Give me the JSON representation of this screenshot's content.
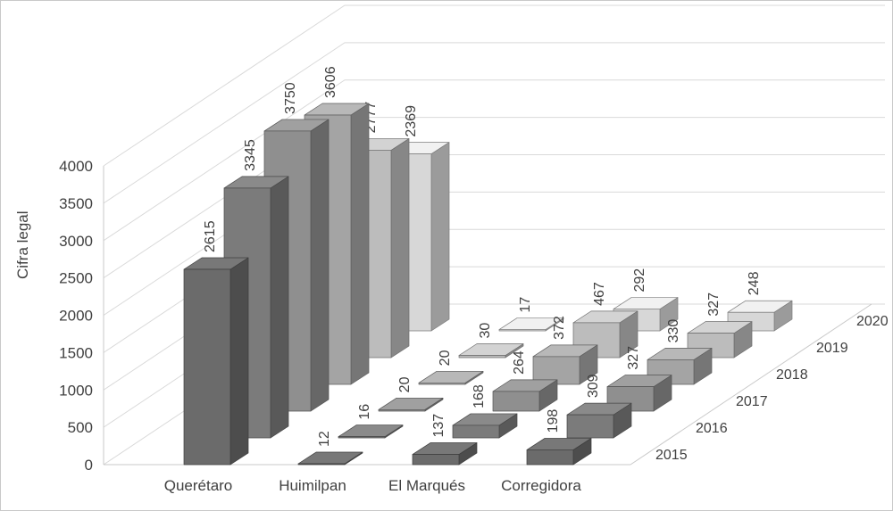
{
  "chart_data": {
    "type": "bar",
    "projection": "3d",
    "title": "",
    "ylabel": "Cifra legal",
    "xlabel": "",
    "categories": [
      "Querétaro",
      "Huimilpan",
      "El Marqués",
      "Corregidora"
    ],
    "series": [
      {
        "name": "2015",
        "color": "#6b6b6b",
        "values": [
          2615,
          12,
          137,
          198
        ]
      },
      {
        "name": "2016",
        "color": "#7b7b7b",
        "values": [
          3345,
          16,
          168,
          309
        ]
      },
      {
        "name": "2017",
        "color": "#8f8f8f",
        "values": [
          3750,
          20,
          264,
          327
        ]
      },
      {
        "name": "2018",
        "color": "#a4a4a4",
        "values": [
          3606,
          20,
          372,
          330
        ]
      },
      {
        "name": "2019",
        "color": "#bcbcbc",
        "values": [
          2777,
          30,
          467,
          327
        ]
      },
      {
        "name": "2020",
        "color": "#d7d7d7",
        "values": [
          2369,
          17,
          292,
          248
        ]
      }
    ],
    "y_ticks": [
      0,
      500,
      1000,
      1500,
      2000,
      2500,
      3000,
      3500,
      4000
    ],
    "ylim": [
      0,
      4000
    ],
    "grid": true,
    "legend": "none",
    "data_labels": true,
    "colors": {
      "grid": "#d9d9d9",
      "floor_edge": "#c9c9c9",
      "text": "#404040"
    }
  }
}
